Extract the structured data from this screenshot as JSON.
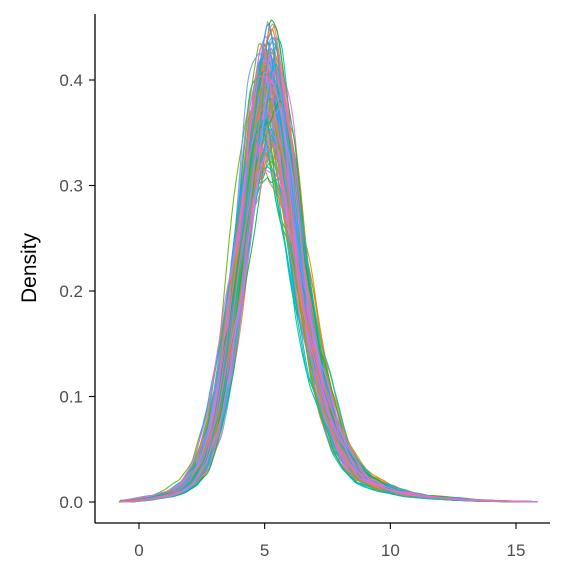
{
  "chart_data": {
    "type": "line",
    "title": "",
    "xlabel": "",
    "ylabel": "Density",
    "xlim": [
      -1,
      16
    ],
    "ylim": [
      0,
      0.44
    ],
    "x_ticks": [
      {
        "value": 0,
        "label": "0"
      },
      {
        "value": 5,
        "label": "5"
      },
      {
        "value": 10,
        "label": "10"
      },
      {
        "value": 15,
        "label": "15"
      }
    ],
    "y_ticks": [
      {
        "value": 0.0,
        "label": "0.0"
      },
      {
        "value": 0.1,
        "label": "0.1"
      },
      {
        "value": 0.2,
        "label": "0.2"
      },
      {
        "value": 0.3,
        "label": "0.3"
      },
      {
        "value": 0.4,
        "label": "0.4"
      }
    ],
    "grid": false,
    "legend": "none",
    "series_count": 120,
    "series_colors": [
      "#F8766D",
      "#E58700",
      "#C99800",
      "#A3A500",
      "#6BB100",
      "#00BA38",
      "#00BF7D",
      "#00C0AF",
      "#00BCD8",
      "#00B0F6",
      "#619CFF",
      "#B983FF",
      "#E76BF3",
      "#FD61D1",
      "#FF67A4"
    ],
    "representative_curve": {
      "x": [
        -0.8,
        0,
        1,
        1.5,
        2,
        2.5,
        3,
        3.5,
        4,
        4.5,
        5,
        5.3,
        5.5,
        6,
        6.5,
        7,
        7.5,
        8,
        8.5,
        9,
        10,
        11,
        12,
        13,
        14,
        15,
        15.8
      ],
      "y": [
        0.0,
        0.002,
        0.006,
        0.01,
        0.018,
        0.035,
        0.075,
        0.14,
        0.23,
        0.32,
        0.38,
        0.385,
        0.37,
        0.3,
        0.21,
        0.14,
        0.09,
        0.055,
        0.035,
        0.022,
        0.011,
        0.006,
        0.004,
        0.002,
        0.001,
        0.0005,
        0.0
      ]
    }
  }
}
